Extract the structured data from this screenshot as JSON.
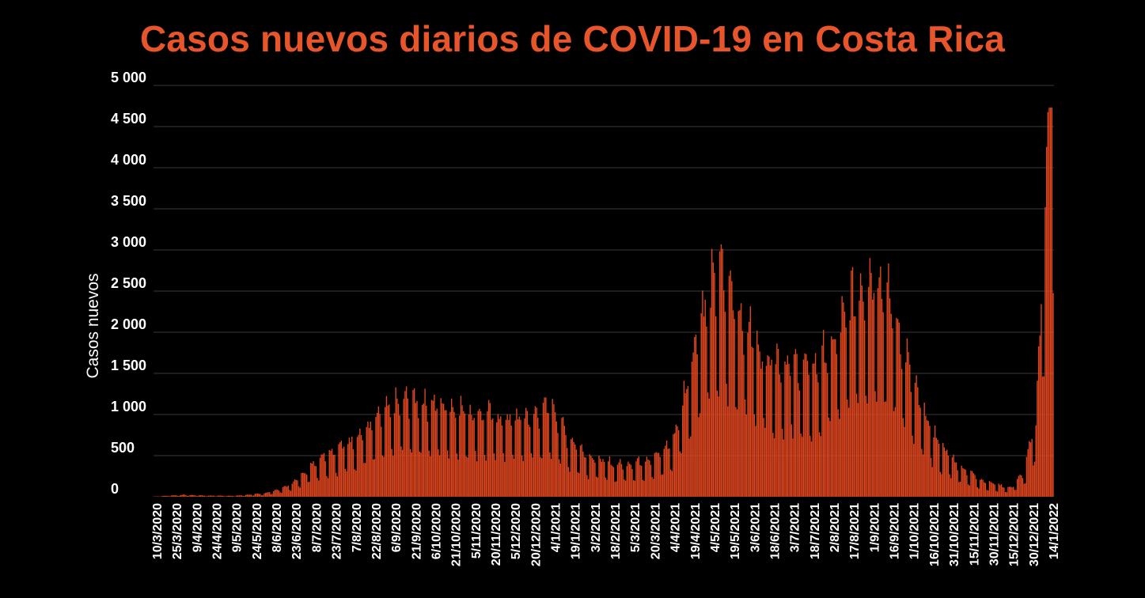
{
  "chart_data": {
    "type": "bar",
    "title": "Casos nuevos diarios de COVID-19 en Costa Rica",
    "ylabel": "Casos nuevos",
    "xlabel": "",
    "ylim": [
      0,
      5000
    ],
    "yticks": [
      0,
      500,
      1000,
      1500,
      2000,
      2500,
      3000,
      3500,
      4000,
      4500,
      5000
    ],
    "ytick_labels": [
      "0",
      "500",
      "1 000",
      "1 500",
      "2 000",
      "2 500",
      "3 000",
      "3 500",
      "4 000",
      "4 500",
      "5 000"
    ],
    "xtick_labels": [
      "10/3/2020",
      "25/3/2020",
      "9/4/2020",
      "24/4/2020",
      "9/5/2020",
      "24/5/2020",
      "8/6/2020",
      "23/6/2020",
      "8/7/2020",
      "23/7/2020",
      "7/8/2020",
      "22/8/2020",
      "6/9/2020",
      "21/9/2020",
      "6/10/2020",
      "21/10/2020",
      "5/11/2020",
      "20/11/2020",
      "5/12/2020",
      "20/12/2020",
      "4/1/2021",
      "19/1/2021",
      "3/2/2021",
      "18/2/2021",
      "5/3/2021",
      "20/3/2021",
      "4/4/2021",
      "19/4/2021",
      "4/5/2021",
      "19/5/2021",
      "3/6/2021",
      "18/6/2021",
      "3/7/2021",
      "18/7/2021",
      "2/8/2021",
      "17/8/2021",
      "1/9/2021",
      "16/9/2021",
      "1/10/2021",
      "16/10/2021",
      "31/10/2021",
      "15/11/2021",
      "30/11/2021",
      "15/12/2021",
      "30/12/2021",
      "14/1/2022"
    ],
    "x_start": "10/3/2020",
    "x_end": "16/1/2022",
    "series_trend": [
      [
        "10/3/2020",
        3
      ],
      [
        "1/4/2020",
        20
      ],
      [
        "20/4/2020",
        12
      ],
      [
        "10/5/2020",
        10
      ],
      [
        "1/6/2020",
        35
      ],
      [
        "15/6/2020",
        90
      ],
      [
        "25/6/2020",
        170
      ],
      [
        "5/7/2020",
        310
      ],
      [
        "15/7/2020",
        430
      ],
      [
        "1/8/2020",
        540
      ],
      [
        "15/8/2020",
        680
      ],
      [
        "1/9/2020",
        870
      ],
      [
        "15/9/2020",
        1000
      ],
      [
        "1/10/2020",
        960
      ],
      [
        "20/10/2020",
        920
      ],
      [
        "10/11/2020",
        860
      ],
      [
        "1/12/2020",
        800
      ],
      [
        "20/12/2020",
        830
      ],
      [
        "4/1/2021",
        920
      ],
      [
        "15/1/2021",
        620
      ],
      [
        "1/2/2021",
        420
      ],
      [
        "20/2/2021",
        330
      ],
      [
        "10/3/2021",
        360
      ],
      [
        "25/3/2021",
        430
      ],
      [
        "5/4/2021",
        590
      ],
      [
        "15/4/2021",
        1150
      ],
      [
        "25/4/2021",
        1850
      ],
      [
        "10/5/2021",
        2300
      ],
      [
        "25/5/2021",
        1900
      ],
      [
        "10/6/2021",
        1500
      ],
      [
        "1/7/2021",
        1350
      ],
      [
        "20/7/2021",
        1300
      ],
      [
        "5/8/2021",
        1600
      ],
      [
        "20/8/2021",
        2100
      ],
      [
        "5/9/2021",
        2300
      ],
      [
        "20/9/2021",
        1800
      ],
      [
        "5/10/2021",
        1050
      ],
      [
        "20/10/2021",
        600
      ],
      [
        "5/11/2021",
        330
      ],
      [
        "25/11/2021",
        160
      ],
      [
        "15/12/2021",
        90
      ],
      [
        "25/12/2021",
        250
      ],
      [
        "3/1/2022",
        800
      ],
      [
        "8/1/2022",
        2400
      ],
      [
        "12/1/2022",
        3900
      ],
      [
        "14/1/2022",
        4500
      ],
      [
        "16/1/2022",
        4300
      ]
    ],
    "series_max": 4730,
    "colors": {
      "bars": "#e0461f",
      "title": "#e8552b",
      "background": "#000000",
      "grid": "#3a3a3a",
      "text": "#ffffff"
    },
    "grid": true,
    "legend": "none"
  }
}
